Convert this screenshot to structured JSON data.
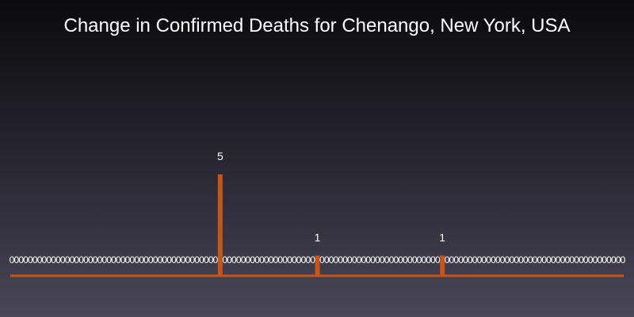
{
  "chart_data": {
    "type": "bar",
    "title": "Change in Confirmed Deaths for Chenango, New York, USA",
    "xlabel": "",
    "ylabel": "",
    "grid": false,
    "legend": "none",
    "ylim": [
      0,
      5
    ],
    "days": 133,
    "values_nonzero": [
      {
        "index": 45,
        "value": 5
      },
      {
        "index": 66,
        "value": 1
      },
      {
        "index": 93,
        "value": 1
      }
    ],
    "zero_label": "0",
    "colors": {
      "bar": "#c8541a",
      "label": "#ffffff",
      "title": "#ffffff"
    }
  }
}
